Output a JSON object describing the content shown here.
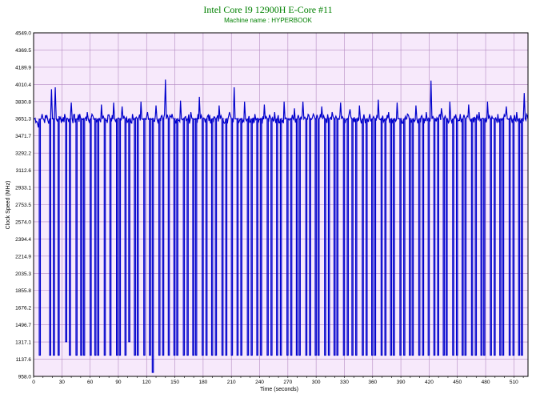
{
  "chart_data": {
    "type": "line",
    "title": "Intel Core I9 12900H E-Core #11",
    "subtitle": "Machine name : HYPERBOOK",
    "xlabel": "Time (seconds)",
    "ylabel": "Clock Speed (MHz)",
    "xlim": [
      0,
      525
    ],
    "ylim": [
      958.0,
      4549.0
    ],
    "x_ticks": [
      0,
      30,
      60,
      90,
      120,
      150,
      180,
      210,
      240,
      270,
      300,
      330,
      360,
      390,
      420,
      450,
      480,
      510
    ],
    "y_ticks": [
      958.0,
      1137.6,
      1317.1,
      1496.7,
      1676.2,
      1855.8,
      2035.3,
      2214.9,
      2394.4,
      2574.0,
      2753.5,
      2933.1,
      3112.6,
      3292.2,
      3471.7,
      3651.3,
      3830.8,
      4010.4,
      4189.9,
      4369.5,
      4549.0
    ],
    "grid": true,
    "colors": {
      "line": "#0000cc",
      "plot_background": "#f7e9fb",
      "grid": "#b48ac2",
      "title": "#008000"
    },
    "series": [
      {
        "baseline": 3651.3,
        "baseline_wobble": [
          3600,
          3700
        ],
        "spike_high": [
          3780,
          4060
        ],
        "spike_low_levels": [
          1180,
          958
        ],
        "points": [
          [
            0,
            3650
          ],
          [
            4,
            3610
          ],
          [
            5,
            3560
          ],
          [
            6,
            1180
          ],
          [
            8,
            3650
          ],
          [
            9,
            3700
          ],
          [
            11,
            3640
          ],
          [
            14,
            3690
          ],
          [
            16,
            3600
          ],
          [
            17,
            1180
          ],
          [
            18,
            3650
          ],
          [
            19,
            3960
          ],
          [
            20,
            3650
          ],
          [
            21,
            1180
          ],
          [
            22,
            3640
          ],
          [
            23,
            3980
          ],
          [
            24,
            3650
          ],
          [
            26,
            1180
          ],
          [
            28,
            3650
          ],
          [
            33,
            3700
          ],
          [
            34,
            1320
          ],
          [
            35,
            3650
          ],
          [
            38,
            1180
          ],
          [
            39,
            3650
          ],
          [
            40,
            3820
          ],
          [
            41,
            3650
          ],
          [
            45,
            1180
          ],
          [
            46,
            3650
          ],
          [
            49,
            3700
          ],
          [
            50,
            1180
          ],
          [
            51,
            3650
          ],
          [
            53,
            1180
          ],
          [
            54,
            3650
          ],
          [
            57,
            3720
          ],
          [
            58,
            3650
          ],
          [
            60,
            1180
          ],
          [
            61,
            3650
          ],
          [
            63,
            3680
          ],
          [
            65,
            1180
          ],
          [
            66,
            3650
          ],
          [
            68,
            1180
          ],
          [
            69,
            3650
          ],
          [
            72,
            3800
          ],
          [
            73,
            3650
          ],
          [
            75,
            1180
          ],
          [
            76,
            3650
          ],
          [
            79,
            3690
          ],
          [
            81,
            1180
          ],
          [
            82,
            3650
          ],
          [
            85,
            3820
          ],
          [
            86,
            3650
          ],
          [
            88,
            1180
          ],
          [
            89,
            3650
          ],
          [
            91,
            1180
          ],
          [
            92,
            3650
          ],
          [
            94,
            3780
          ],
          [
            95,
            3650
          ],
          [
            97,
            1180
          ],
          [
            98,
            3650
          ],
          [
            101,
            1320
          ],
          [
            102,
            3650
          ],
          [
            105,
            3700
          ],
          [
            107,
            1180
          ],
          [
            108,
            3650
          ],
          [
            110,
            1180
          ],
          [
            111,
            3650
          ],
          [
            114,
            3830
          ],
          [
            115,
            3650
          ],
          [
            117,
            1180
          ],
          [
            118,
            3650
          ],
          [
            121,
            3720
          ],
          [
            123,
            1180
          ],
          [
            124,
            3650
          ],
          [
            126,
            1000
          ],
          [
            127,
            3650
          ],
          [
            130,
            3790
          ],
          [
            131,
            3650
          ],
          [
            133,
            1180
          ],
          [
            134,
            3650
          ],
          [
            137,
            1180
          ],
          [
            138,
            3650
          ],
          [
            140,
            4060
          ],
          [
            141,
            3650
          ],
          [
            143,
            1180
          ],
          [
            144,
            3650
          ],
          [
            147,
            3700
          ],
          [
            149,
            1180
          ],
          [
            150,
            3650
          ],
          [
            152,
            1180
          ],
          [
            153,
            3650
          ],
          [
            156,
            3840
          ],
          [
            157,
            3650
          ],
          [
            159,
            1180
          ],
          [
            160,
            3650
          ],
          [
            163,
            1180
          ],
          [
            164,
            3650
          ],
          [
            167,
            3720
          ],
          [
            169,
            1180
          ],
          [
            170,
            3650
          ],
          [
            172,
            1180
          ],
          [
            173,
            3650
          ],
          [
            176,
            3880
          ],
          [
            177,
            3650
          ],
          [
            179,
            1180
          ],
          [
            180,
            3650
          ],
          [
            183,
            1180
          ],
          [
            184,
            3650
          ],
          [
            187,
            3690
          ],
          [
            189,
            1180
          ],
          [
            190,
            3650
          ],
          [
            193,
            1180
          ],
          [
            194,
            3650
          ],
          [
            197,
            3790
          ],
          [
            198,
            3650
          ],
          [
            200,
            1180
          ],
          [
            201,
            3650
          ],
          [
            204,
            1180
          ],
          [
            205,
            3650
          ],
          [
            208,
            3720
          ],
          [
            210,
            1180
          ],
          [
            211,
            3650
          ],
          [
            213,
            3980
          ],
          [
            214,
            3650
          ],
          [
            216,
            1180
          ],
          [
            217,
            3650
          ],
          [
            220,
            1180
          ],
          [
            221,
            3650
          ],
          [
            224,
            3830
          ],
          [
            225,
            3650
          ],
          [
            227,
            1180
          ],
          [
            228,
            3650
          ],
          [
            231,
            1180
          ],
          [
            232,
            3650
          ],
          [
            235,
            3700
          ],
          [
            237,
            1180
          ],
          [
            238,
            3650
          ],
          [
            241,
            1180
          ],
          [
            242,
            3650
          ],
          [
            245,
            3800
          ],
          [
            246,
            3650
          ],
          [
            248,
            1180
          ],
          [
            249,
            3650
          ],
          [
            252,
            1180
          ],
          [
            253,
            3650
          ],
          [
            256,
            3720
          ],
          [
            258,
            1180
          ],
          [
            259,
            3650
          ],
          [
            262,
            1180
          ],
          [
            263,
            3650
          ],
          [
            266,
            3830
          ],
          [
            267,
            3650
          ],
          [
            269,
            1180
          ],
          [
            270,
            3650
          ],
          [
            273,
            1180
          ],
          [
            274,
            3650
          ],
          [
            277,
            3760
          ],
          [
            279,
            1180
          ],
          [
            280,
            3650
          ],
          [
            282,
            1180
          ],
          [
            283,
            3650
          ],
          [
            286,
            3830
          ],
          [
            287,
            3650
          ],
          [
            289,
            1180
          ],
          [
            290,
            3650
          ],
          [
            293,
            1180
          ],
          [
            294,
            3650
          ],
          [
            297,
            3700
          ],
          [
            299,
            1180
          ],
          [
            300,
            3650
          ],
          [
            302,
            1180
          ],
          [
            303,
            3650
          ],
          [
            306,
            3780
          ],
          [
            307,
            3650
          ],
          [
            309,
            1180
          ],
          [
            310,
            3650
          ],
          [
            313,
            1180
          ],
          [
            314,
            3650
          ],
          [
            317,
            3720
          ],
          [
            319,
            1180
          ],
          [
            320,
            3650
          ],
          [
            322,
            1180
          ],
          [
            323,
            3650
          ],
          [
            326,
            3820
          ],
          [
            327,
            3650
          ],
          [
            329,
            1180
          ],
          [
            330,
            3650
          ],
          [
            333,
            1180
          ],
          [
            334,
            3650
          ],
          [
            336,
            3750
          ],
          [
            338,
            1180
          ],
          [
            339,
            3650
          ],
          [
            342,
            1180
          ],
          [
            343,
            3650
          ],
          [
            346,
            3790
          ],
          [
            347,
            3650
          ],
          [
            349,
            1180
          ],
          [
            350,
            3650
          ],
          [
            353,
            1180
          ],
          [
            354,
            3650
          ],
          [
            357,
            3700
          ],
          [
            359,
            1180
          ],
          [
            360,
            3650
          ],
          [
            362,
            1180
          ],
          [
            363,
            3650
          ],
          [
            366,
            3850
          ],
          [
            367,
            3650
          ],
          [
            369,
            1180
          ],
          [
            370,
            3650
          ],
          [
            373,
            1180
          ],
          [
            374,
            3650
          ],
          [
            377,
            3720
          ],
          [
            379,
            1180
          ],
          [
            380,
            3650
          ],
          [
            382,
            1180
          ],
          [
            383,
            3650
          ],
          [
            386,
            3820
          ],
          [
            387,
            3650
          ],
          [
            389,
            1180
          ],
          [
            390,
            3650
          ],
          [
            393,
            1180
          ],
          [
            394,
            3650
          ],
          [
            397,
            3700
          ],
          [
            399,
            1180
          ],
          [
            400,
            3650
          ],
          [
            402,
            1180
          ],
          [
            403,
            3650
          ],
          [
            406,
            3790
          ],
          [
            407,
            3650
          ],
          [
            409,
            1180
          ],
          [
            410,
            3650
          ],
          [
            413,
            1180
          ],
          [
            414,
            3650
          ],
          [
            417,
            3720
          ],
          [
            419,
            1180
          ],
          [
            420,
            3650
          ],
          [
            422,
            4050
          ],
          [
            423,
            3650
          ],
          [
            425,
            1180
          ],
          [
            426,
            3650
          ],
          [
            429,
            1180
          ],
          [
            430,
            3650
          ],
          [
            433,
            3760
          ],
          [
            435,
            1180
          ],
          [
            436,
            3650
          ],
          [
            438,
            1180
          ],
          [
            439,
            3650
          ],
          [
            442,
            3830
          ],
          [
            443,
            3650
          ],
          [
            445,
            1180
          ],
          [
            446,
            3650
          ],
          [
            449,
            1180
          ],
          [
            450,
            3650
          ],
          [
            453,
            3700
          ],
          [
            455,
            1180
          ],
          [
            456,
            3650
          ],
          [
            458,
            1180
          ],
          [
            459,
            3650
          ],
          [
            462,
            3800
          ],
          [
            463,
            3650
          ],
          [
            465,
            1180
          ],
          [
            466,
            3650
          ],
          [
            469,
            1180
          ],
          [
            470,
            3650
          ],
          [
            473,
            3720
          ],
          [
            475,
            1180
          ],
          [
            476,
            3650
          ],
          [
            478,
            1180
          ],
          [
            479,
            3650
          ],
          [
            482,
            3830
          ],
          [
            483,
            3650
          ],
          [
            485,
            1180
          ],
          [
            486,
            3650
          ],
          [
            489,
            1180
          ],
          [
            490,
            3650
          ],
          [
            493,
            3700
          ],
          [
            495,
            1180
          ],
          [
            496,
            3650
          ],
          [
            498,
            1180
          ],
          [
            499,
            3650
          ],
          [
            502,
            3780
          ],
          [
            503,
            3650
          ],
          [
            505,
            1180
          ],
          [
            506,
            3650
          ],
          [
            509,
            1180
          ],
          [
            510,
            3650
          ],
          [
            513,
            3720
          ],
          [
            515,
            1180
          ],
          [
            516,
            3650
          ],
          [
            518,
            1180
          ],
          [
            519,
            3650
          ],
          [
            521,
            3920
          ],
          [
            522,
            3650
          ],
          [
            525,
            3650
          ]
        ]
      }
    ]
  }
}
